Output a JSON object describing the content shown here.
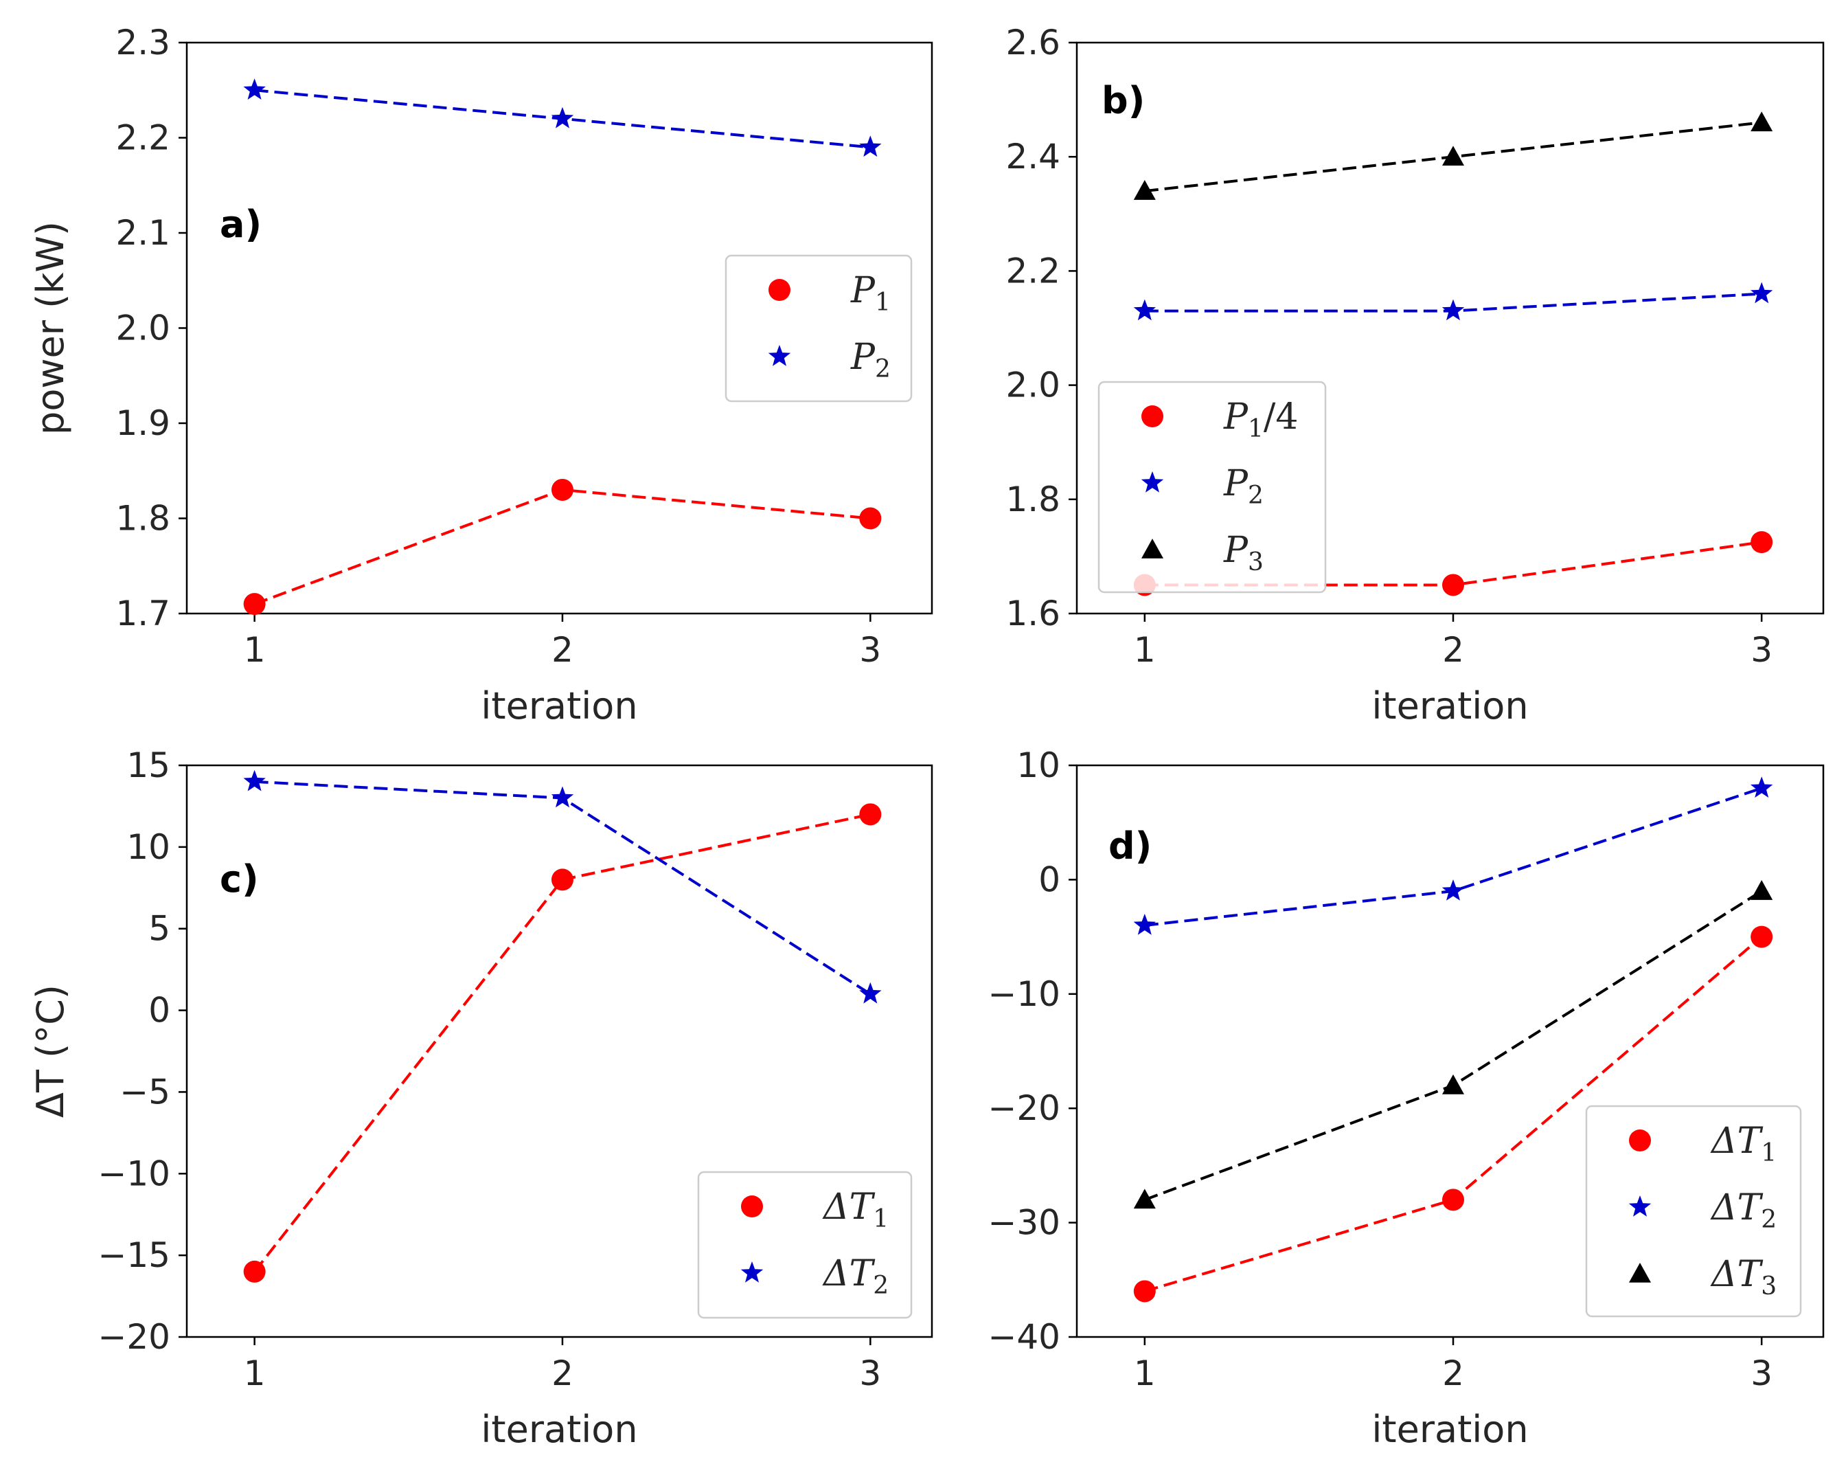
{
  "chart_data": [
    {
      "type": "line",
      "panel_label": "a)",
      "x": [
        1,
        2,
        3
      ],
      "xticks": [
        "1",
        "2",
        "3"
      ],
      "xlabel": "iteration",
      "ylabel": "power (kW)",
      "ylim": [
        1.7,
        2.3
      ],
      "yticks": [
        "1.7",
        "1.8",
        "1.9",
        "2.0",
        "2.1",
        "2.2",
        "2.3"
      ],
      "legend_position": "center-right",
      "series": [
        {
          "name": "P",
          "sub": "1",
          "suffix": "",
          "color": "#ff0000",
          "marker": "circle",
          "values": [
            1.71,
            1.83,
            1.8
          ]
        },
        {
          "name": "P",
          "sub": "2",
          "suffix": "",
          "color": "#0000cc",
          "marker": "star",
          "values": [
            2.25,
            2.22,
            2.19
          ]
        }
      ]
    },
    {
      "type": "line",
      "panel_label": "b)",
      "x": [
        1,
        2,
        3
      ],
      "xticks": [
        "1",
        "2",
        "3"
      ],
      "xlabel": "iteration",
      "ylabel": "",
      "ylim": [
        1.6,
        2.6
      ],
      "yticks": [
        "1.6",
        "1.8",
        "2.0",
        "2.2",
        "2.4",
        "2.6"
      ],
      "legend_position": "lower-left",
      "series": [
        {
          "name": "P",
          "sub": "1",
          "suffix": "/4",
          "color": "#ff0000",
          "marker": "circle",
          "values": [
            1.65,
            1.65,
            1.725
          ]
        },
        {
          "name": "P",
          "sub": "2",
          "suffix": "",
          "color": "#0000cc",
          "marker": "star",
          "values": [
            2.13,
            2.13,
            2.16
          ]
        },
        {
          "name": "P",
          "sub": "3",
          "suffix": "",
          "color": "#000000",
          "marker": "triangle",
          "values": [
            2.34,
            2.4,
            2.46
          ]
        }
      ]
    },
    {
      "type": "line",
      "panel_label": "c)",
      "x": [
        1,
        2,
        3
      ],
      "xticks": [
        "1",
        "2",
        "3"
      ],
      "xlabel": "iteration",
      "ylabel": "ΔT (°C)",
      "ylim": [
        -20,
        15
      ],
      "yticks": [
        "−20",
        "−15",
        "−10",
        "−5",
        "0",
        "5",
        "10",
        "15"
      ],
      "legend_position": "lower-right",
      "series": [
        {
          "name": "ΔT",
          "sub": "1",
          "suffix": "",
          "color": "#ff0000",
          "marker": "circle",
          "values": [
            -16,
            8,
            12
          ]
        },
        {
          "name": "ΔT",
          "sub": "2",
          "suffix": "",
          "color": "#0000cc",
          "marker": "star",
          "values": [
            14,
            13,
            1
          ]
        }
      ]
    },
    {
      "type": "line",
      "panel_label": "d)",
      "x": [
        1,
        2,
        3
      ],
      "xticks": [
        "1",
        "2",
        "3"
      ],
      "xlabel": "iteration",
      "ylabel": "",
      "ylim": [
        -40,
        10
      ],
      "yticks": [
        "−40",
        "−30",
        "−20",
        "−10",
        "0",
        "10"
      ],
      "legend_position": "lower-right",
      "series": [
        {
          "name": "ΔT",
          "sub": "1",
          "suffix": "",
          "color": "#ff0000",
          "marker": "circle",
          "values": [
            -36,
            -28,
            -5
          ]
        },
        {
          "name": "ΔT",
          "sub": "2",
          "suffix": "",
          "color": "#0000cc",
          "marker": "star",
          "values": [
            -4,
            -1,
            8
          ]
        },
        {
          "name": "ΔT",
          "sub": "3",
          "suffix": "",
          "color": "#000000",
          "marker": "triangle",
          "values": [
            -28,
            -18,
            -1
          ]
        }
      ]
    }
  ]
}
